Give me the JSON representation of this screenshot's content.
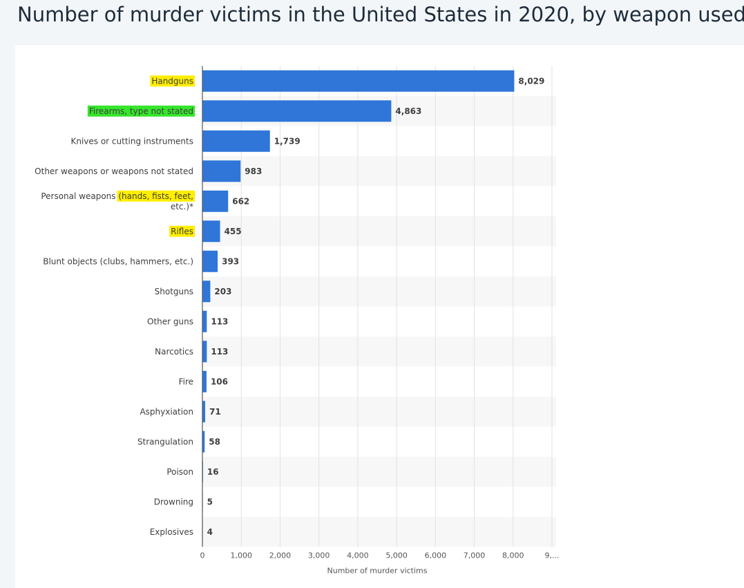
{
  "page": {
    "title": "Number of murder victims in the United States in 2020, by weapon used"
  },
  "chart_data": {
    "type": "bar",
    "orientation": "horizontal",
    "xlabel": "Number of murder victims",
    "xlim": [
      0,
      9000
    ],
    "ticks": [
      "0",
      "1,000",
      "2,000",
      "3,000",
      "4,000",
      "5,000",
      "6,000",
      "7,000",
      "8,000",
      "9,..."
    ],
    "grid": true,
    "bar_color": "#2f76d8",
    "highlight_colors": {
      "yellow": "#ffee00",
      "green": "#35e62a"
    },
    "categories": [
      {
        "label": "Handguns",
        "value": 8029,
        "value_label": "8,029",
        "highlight": "yellow"
      },
      {
        "label": "Firearms, type not stated",
        "value": 4863,
        "value_label": "4,863",
        "highlight": "green"
      },
      {
        "label": "Knives or cutting instruments",
        "value": 1739,
        "value_label": "1,739"
      },
      {
        "label": "Other weapons or weapons not stated",
        "value": 983,
        "value_label": "983"
      },
      {
        "label": "Personal weapons (hands, fists, feet, etc.)*",
        "value": 662,
        "value_label": "662",
        "label_lines": [
          [
            {
              "t": "Personal weapons "
            },
            {
              "t": "(hands, fists, feet,",
              "highlight": "yellow"
            }
          ],
          [
            {
              "t": "etc.)*"
            }
          ]
        ]
      },
      {
        "label": "Rifles",
        "value": 455,
        "value_label": "455",
        "highlight": "yellow"
      },
      {
        "label": "Blunt objects (clubs, hammers, etc.)",
        "value": 393,
        "value_label": "393"
      },
      {
        "label": "Shotguns",
        "value": 203,
        "value_label": "203"
      },
      {
        "label": "Other guns",
        "value": 113,
        "value_label": "113"
      },
      {
        "label": "Narcotics",
        "value": 113,
        "value_label": "113"
      },
      {
        "label": "Fire",
        "value": 106,
        "value_label": "106"
      },
      {
        "label": "Asphyxiation",
        "value": 71,
        "value_label": "71"
      },
      {
        "label": "Strangulation",
        "value": 58,
        "value_label": "58"
      },
      {
        "label": "Poison",
        "value": 16,
        "value_label": "16"
      },
      {
        "label": "Drowning",
        "value": 5,
        "value_label": "5"
      },
      {
        "label": "Explosives",
        "value": 4,
        "value_label": "4"
      }
    ]
  }
}
